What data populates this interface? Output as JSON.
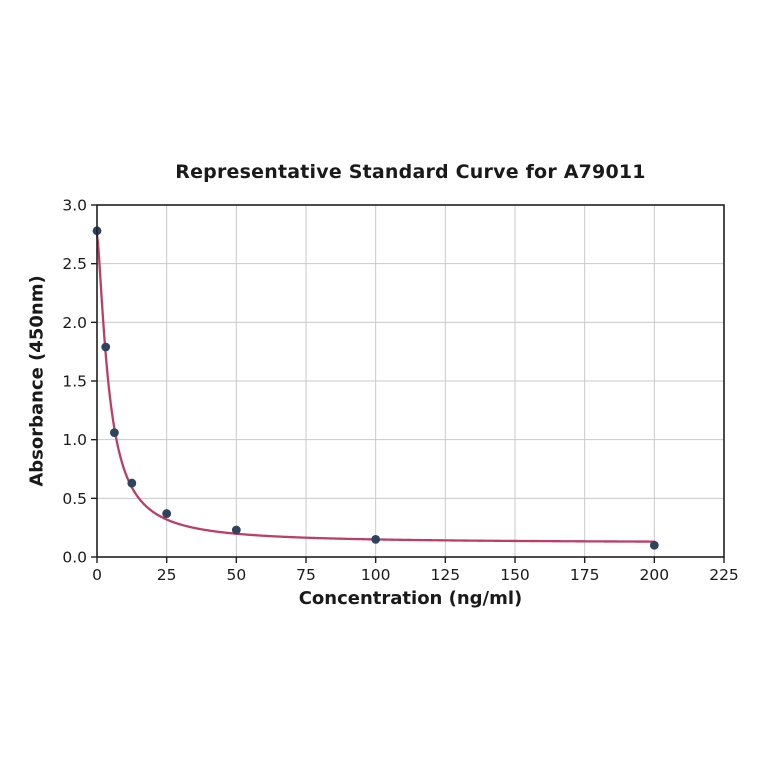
{
  "chart_data": {
    "type": "scatter",
    "title": "Representative Standard Curve for A79011",
    "xlabel": "Concentration (ng/ml)",
    "ylabel": "Absorbance (450nm)",
    "xlim": [
      0,
      225
    ],
    "ylim": [
      0,
      3.0
    ],
    "x_ticks": [
      0,
      25,
      50,
      75,
      100,
      125,
      150,
      175,
      200,
      225
    ],
    "y_ticks": [
      0.0,
      0.5,
      1.0,
      1.5,
      2.0,
      2.5,
      3.0
    ],
    "grid": true,
    "legend": "none",
    "points": [
      {
        "x": 0,
        "y": 2.78
      },
      {
        "x": 3.125,
        "y": 1.79
      },
      {
        "x": 6.25,
        "y": 1.06
      },
      {
        "x": 12.5,
        "y": 0.63
      },
      {
        "x": 25,
        "y": 0.37
      },
      {
        "x": 50,
        "y": 0.23
      },
      {
        "x": 100,
        "y": 0.15
      },
      {
        "x": 200,
        "y": 0.1
      }
    ],
    "fit_curve": {
      "model": "4PL",
      "params": {
        "a": 2.75,
        "b": 1.42,
        "c": 4.3,
        "d": 0.12
      },
      "x_range": [
        0,
        200
      ]
    },
    "colors": {
      "curve": "#bb3f65",
      "marker": "#2e4360",
      "grid": "#c9c9c9",
      "axis": "#1f1f1f",
      "tick_label": "#1a1a1a",
      "background": "#ffffff"
    }
  }
}
